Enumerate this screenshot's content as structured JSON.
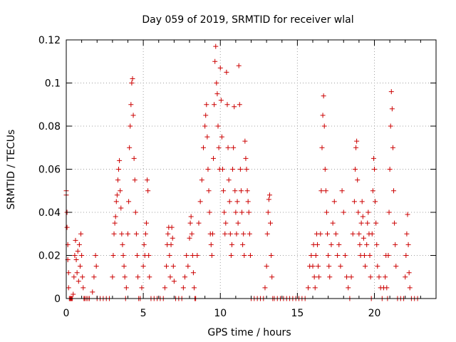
{
  "chart_data": {
    "type": "scatter",
    "title": "Day 059 of 2019, SRMTID for receiver wlal",
    "xlabel": "GPS time / hours",
    "ylabel": "SRMTID / TECUs",
    "xlim": [
      0,
      24
    ],
    "ylim": [
      0,
      0.12
    ],
    "x_ticks": [
      0,
      5,
      10,
      15,
      20
    ],
    "y_ticks": [
      0,
      0.02,
      0.04,
      0.06,
      0.08,
      0.1,
      0.12
    ],
    "x_tick_labels": [
      "0",
      "5",
      "10",
      "15",
      "20"
    ],
    "y_tick_labels": [
      "0",
      "0.02",
      "0.04",
      "0.06",
      "0.08",
      "0.1",
      "0.12"
    ],
    "grid": true,
    "marker": "plus",
    "series": [
      {
        "name": "SRMTID",
        "color": "#cc0000",
        "points": [
          [
            0.0,
            0.05
          ],
          [
            0.0,
            0.048
          ],
          [
            0.05,
            0.04
          ],
          [
            0.05,
            0.033
          ],
          [
            0.1,
            0.025
          ],
          [
            0.1,
            0.018
          ],
          [
            0.15,
            0.012
          ],
          [
            0.15,
            0.005
          ],
          [
            0.2,
            0.0
          ],
          [
            0.25,
            0.0
          ],
          [
            0.3,
            0.0
          ],
          [
            0.35,
            0.0
          ],
          [
            0.4,
            0.0
          ],
          [
            0.45,
            0.002
          ],
          [
            0.5,
            0.01
          ],
          [
            0.55,
            0.02
          ],
          [
            0.6,
            0.027
          ],
          [
            0.65,
            0.018
          ],
          [
            0.7,
            0.012
          ],
          [
            0.75,
            0.022
          ],
          [
            0.8,
            0.008
          ],
          [
            0.85,
            0.025
          ],
          [
            0.9,
            0.015
          ],
          [
            0.95,
            0.03
          ],
          [
            1.0,
            0.02
          ],
          [
            1.05,
            0.01
          ],
          [
            1.1,
            0.005
          ],
          [
            1.15,
            0.0
          ],
          [
            1.2,
            0.0
          ],
          [
            1.3,
            0.0
          ],
          [
            1.4,
            0.0
          ],
          [
            1.5,
            0.0
          ],
          [
            1.7,
            0.003
          ],
          [
            1.8,
            0.01
          ],
          [
            1.9,
            0.02
          ],
          [
            1.95,
            0.015
          ],
          [
            2.0,
            0.0
          ],
          [
            2.2,
            0.0
          ],
          [
            2.4,
            0.0
          ],
          [
            2.6,
            0.0
          ],
          [
            2.8,
            0.0
          ],
          [
            3.0,
            0.01
          ],
          [
            3.05,
            0.02
          ],
          [
            3.1,
            0.03
          ],
          [
            3.15,
            0.035
          ],
          [
            3.2,
            0.038
          ],
          [
            3.25,
            0.045
          ],
          [
            3.3,
            0.048
          ],
          [
            3.35,
            0.055
          ],
          [
            3.4,
            0.06
          ],
          [
            3.45,
            0.064
          ],
          [
            3.5,
            0.05
          ],
          [
            3.55,
            0.042
          ],
          [
            3.6,
            0.03
          ],
          [
            3.65,
            0.025
          ],
          [
            3.7,
            0.02
          ],
          [
            3.75,
            0.015
          ],
          [
            3.8,
            0.01
          ],
          [
            3.85,
            0.0
          ],
          [
            3.9,
            0.005
          ],
          [
            4.0,
            0.03
          ],
          [
            4.05,
            0.045
          ],
          [
            4.1,
            0.07
          ],
          [
            4.15,
            0.08
          ],
          [
            4.2,
            0.09
          ],
          [
            4.25,
            0.1
          ],
          [
            4.3,
            0.102
          ],
          [
            4.35,
            0.085
          ],
          [
            4.4,
            0.065
          ],
          [
            4.45,
            0.055
          ],
          [
            4.5,
            0.04
          ],
          [
            4.55,
            0.03
          ],
          [
            4.6,
            0.02
          ],
          [
            4.65,
            0.01
          ],
          [
            4.7,
            0.0
          ],
          [
            4.8,
            0.0
          ],
          [
            4.9,
            0.005
          ],
          [
            5.0,
            0.015
          ],
          [
            5.05,
            0.025
          ],
          [
            5.1,
            0.02
          ],
          [
            5.15,
            0.03
          ],
          [
            5.2,
            0.035
          ],
          [
            5.25,
            0.055
          ],
          [
            5.3,
            0.05
          ],
          [
            5.35,
            0.02
          ],
          [
            5.4,
            0.01
          ],
          [
            5.5,
            0.0
          ],
          [
            5.7,
            0.0
          ],
          [
            5.9,
            0.0
          ],
          [
            6.1,
            0.0
          ],
          [
            6.3,
            0.0
          ],
          [
            6.4,
            0.005
          ],
          [
            6.5,
            0.015
          ],
          [
            6.55,
            0.025
          ],
          [
            6.6,
            0.03
          ],
          [
            6.65,
            0.033
          ],
          [
            6.7,
            0.02
          ],
          [
            6.75,
            0.01
          ],
          [
            6.8,
            0.025
          ],
          [
            6.85,
            0.033
          ],
          [
            6.9,
            0.028
          ],
          [
            6.95,
            0.015
          ],
          [
            7.0,
            0.008
          ],
          [
            7.1,
            0.0
          ],
          [
            7.3,
            0.0
          ],
          [
            7.5,
            0.0
          ],
          [
            7.6,
            0.005
          ],
          [
            7.7,
            0.01
          ],
          [
            7.8,
            0.02
          ],
          [
            7.9,
            0.015
          ],
          [
            8.0,
            0.028
          ],
          [
            8.05,
            0.035
          ],
          [
            8.1,
            0.038
          ],
          [
            8.15,
            0.03
          ],
          [
            8.2,
            0.02
          ],
          [
            8.25,
            0.012
          ],
          [
            8.3,
            0.005
          ],
          [
            8.35,
            0.0
          ],
          [
            8.4,
            0.0
          ],
          [
            8.5,
            0.02
          ],
          [
            8.6,
            0.035
          ],
          [
            8.7,
            0.045
          ],
          [
            8.8,
            0.055
          ],
          [
            8.9,
            0.07
          ],
          [
            9.0,
            0.08
          ],
          [
            9.05,
            0.085
          ],
          [
            9.1,
            0.09
          ],
          [
            9.15,
            0.075
          ],
          [
            9.2,
            0.06
          ],
          [
            9.25,
            0.05
          ],
          [
            9.3,
            0.04
          ],
          [
            9.35,
            0.03
          ],
          [
            9.4,
            0.025
          ],
          [
            9.45,
            0.02
          ],
          [
            9.5,
            0.03
          ],
          [
            9.55,
            0.065
          ],
          [
            9.6,
            0.09
          ],
          [
            9.65,
            0.11
          ],
          [
            9.7,
            0.117
          ],
          [
            9.75,
            0.1
          ],
          [
            9.8,
            0.095
          ],
          [
            9.85,
            0.08
          ],
          [
            9.9,
            0.07
          ],
          [
            9.95,
            0.06
          ],
          [
            10.0,
            0.107
          ],
          [
            10.05,
            0.092
          ],
          [
            10.1,
            0.075
          ],
          [
            10.15,
            0.06
          ],
          [
            10.2,
            0.05
          ],
          [
            10.25,
            0.04
          ],
          [
            10.3,
            0.03
          ],
          [
            10.35,
            0.035
          ],
          [
            10.4,
            0.105
          ],
          [
            10.45,
            0.09
          ],
          [
            10.5,
            0.07
          ],
          [
            10.55,
            0.055
          ],
          [
            10.6,
            0.045
          ],
          [
            10.65,
            0.03
          ],
          [
            10.7,
            0.02
          ],
          [
            10.75,
            0.025
          ],
          [
            10.8,
            0.06
          ],
          [
            10.85,
            0.07
          ],
          [
            10.9,
            0.089
          ],
          [
            10.95,
            0.05
          ],
          [
            11.0,
            0.04
          ],
          [
            11.05,
            0.03
          ],
          [
            11.1,
            0.045
          ],
          [
            11.15,
            0.035
          ],
          [
            11.2,
            0.108
          ],
          [
            11.25,
            0.09
          ],
          [
            11.3,
            0.06
          ],
          [
            11.35,
            0.05
          ],
          [
            11.4,
            0.04
          ],
          [
            11.45,
            0.025
          ],
          [
            11.5,
            0.03
          ],
          [
            11.55,
            0.02
          ],
          [
            11.6,
            0.073
          ],
          [
            11.65,
            0.065
          ],
          [
            11.7,
            0.06
          ],
          [
            11.75,
            0.05
          ],
          [
            11.8,
            0.045
          ],
          [
            11.85,
            0.04
          ],
          [
            11.9,
            0.03
          ],
          [
            11.95,
            0.02
          ],
          [
            12.0,
            0.0
          ],
          [
            12.2,
            0.0
          ],
          [
            12.4,
            0.0
          ],
          [
            12.6,
            0.0
          ],
          [
            12.8,
            0.0
          ],
          [
            12.9,
            0.005
          ],
          [
            13.0,
            0.015
          ],
          [
            13.05,
            0.03
          ],
          [
            13.1,
            0.04
          ],
          [
            13.15,
            0.046
          ],
          [
            13.2,
            0.048
          ],
          [
            13.25,
            0.035
          ],
          [
            13.3,
            0.02
          ],
          [
            13.35,
            0.01
          ],
          [
            13.4,
            0.0
          ],
          [
            13.5,
            0.0
          ],
          [
            13.7,
            0.0
          ],
          [
            13.9,
            0.0
          ],
          [
            14.1,
            0.0
          ],
          [
            14.3,
            0.0
          ],
          [
            14.5,
            0.0
          ],
          [
            14.7,
            0.0
          ],
          [
            14.9,
            0.0
          ],
          [
            15.1,
            0.0
          ],
          [
            15.3,
            0.0
          ],
          [
            15.5,
            0.0
          ],
          [
            15.7,
            0.005
          ],
          [
            15.8,
            0.015
          ],
          [
            15.9,
            0.02
          ],
          [
            16.0,
            0.015
          ],
          [
            16.05,
            0.025
          ],
          [
            16.1,
            0.01
          ],
          [
            16.15,
            0.005
          ],
          [
            16.2,
            0.02
          ],
          [
            16.25,
            0.03
          ],
          [
            16.3,
            0.025
          ],
          [
            16.35,
            0.015
          ],
          [
            16.4,
            0.01
          ],
          [
            16.5,
            0.03
          ],
          [
            16.55,
            0.05
          ],
          [
            16.6,
            0.07
          ],
          [
            16.65,
            0.085
          ],
          [
            16.7,
            0.094
          ],
          [
            16.75,
            0.08
          ],
          [
            16.8,
            0.06
          ],
          [
            16.85,
            0.05
          ],
          [
            16.9,
            0.04
          ],
          [
            16.95,
            0.03
          ],
          [
            17.0,
            0.02
          ],
          [
            17.05,
            0.015
          ],
          [
            17.1,
            0.01
          ],
          [
            17.2,
            0.025
          ],
          [
            17.3,
            0.035
          ],
          [
            17.4,
            0.045
          ],
          [
            17.5,
            0.03
          ],
          [
            17.6,
            0.02
          ],
          [
            17.7,
            0.025
          ],
          [
            17.8,
            0.015
          ],
          [
            17.9,
            0.05
          ],
          [
            18.0,
            0.04
          ],
          [
            18.1,
            0.02
          ],
          [
            18.2,
            0.01
          ],
          [
            18.3,
            0.005
          ],
          [
            18.4,
            0.0
          ],
          [
            18.5,
            0.01
          ],
          [
            18.6,
            0.03
          ],
          [
            18.7,
            0.045
          ],
          [
            18.75,
            0.06
          ],
          [
            18.8,
            0.07
          ],
          [
            18.85,
            0.073
          ],
          [
            18.9,
            0.055
          ],
          [
            18.95,
            0.04
          ],
          [
            19.0,
            0.03
          ],
          [
            19.05,
            0.025
          ],
          [
            19.1,
            0.02
          ],
          [
            19.15,
            0.035
          ],
          [
            19.2,
            0.045
          ],
          [
            19.25,
            0.038
          ],
          [
            19.3,
            0.028
          ],
          [
            19.35,
            0.02
          ],
          [
            19.4,
            0.015
          ],
          [
            19.5,
            0.025
          ],
          [
            19.55,
            0.035
          ],
          [
            19.6,
            0.04
          ],
          [
            19.65,
            0.03
          ],
          [
            19.7,
            0.02
          ],
          [
            19.75,
            0.01
          ],
          [
            19.8,
            0.0
          ],
          [
            19.85,
            0.03
          ],
          [
            19.9,
            0.05
          ],
          [
            19.95,
            0.065
          ],
          [
            20.0,
            0.06
          ],
          [
            20.05,
            0.045
          ],
          [
            20.1,
            0.035
          ],
          [
            20.15,
            0.025
          ],
          [
            20.2,
            0.015
          ],
          [
            20.3,
            0.01
          ],
          [
            20.4,
            0.005
          ],
          [
            20.5,
            0.0
          ],
          [
            20.6,
            0.005
          ],
          [
            20.7,
            0.01
          ],
          [
            20.75,
            0.02
          ],
          [
            20.8,
            0.005
          ],
          [
            20.85,
            0.0
          ],
          [
            20.9,
            0.02
          ],
          [
            20.95,
            0.04
          ],
          [
            21.0,
            0.06
          ],
          [
            21.05,
            0.08
          ],
          [
            21.1,
            0.096
          ],
          [
            21.15,
            0.088
          ],
          [
            21.2,
            0.07
          ],
          [
            21.25,
            0.05
          ],
          [
            21.3,
            0.035
          ],
          [
            21.35,
            0.025
          ],
          [
            21.4,
            0.015
          ],
          [
            21.5,
            0.0
          ],
          [
            21.7,
            0.0
          ],
          [
            21.9,
            0.0
          ],
          [
            22.0,
            0.01
          ],
          [
            22.05,
            0.02
          ],
          [
            22.1,
            0.03
          ],
          [
            22.15,
            0.039
          ],
          [
            22.2,
            0.025
          ],
          [
            22.25,
            0.012
          ],
          [
            22.3,
            0.005
          ],
          [
            22.4,
            0.0
          ],
          [
            22.6,
            0.0
          ],
          [
            22.8,
            0.0
          ]
        ]
      }
    ]
  }
}
